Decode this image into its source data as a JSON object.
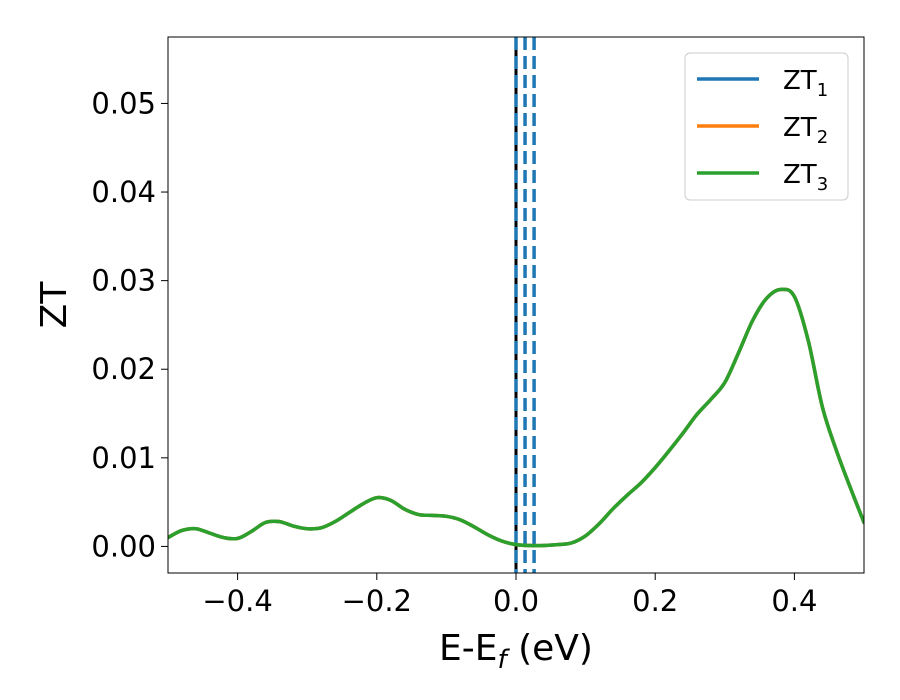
{
  "chart_data": {
    "type": "line",
    "xlabel": "E-E",
    "xlabel_sub": "f",
    "xlabel_unit": " (eV)",
    "ylabel": "ZT",
    "xlim": [
      -0.5,
      0.5
    ],
    "ylim": [
      -0.003,
      0.0575
    ],
    "xticks": [
      -0.4,
      -0.2,
      0.0,
      0.2,
      0.4
    ],
    "xtick_labels": [
      "−0.4",
      "−0.2",
      "0.0",
      "0.2",
      "0.4"
    ],
    "yticks": [
      0.0,
      0.01,
      0.02,
      0.03,
      0.04,
      0.05
    ],
    "ytick_labels": [
      "0.00",
      "0.01",
      "0.02",
      "0.03",
      "0.04",
      "0.05"
    ],
    "grid": false,
    "legend_position": "top-right",
    "series": [
      {
        "name": "ZT",
        "sub": "1",
        "color": "#1f77b4"
      },
      {
        "name": "ZT",
        "sub": "2",
        "color": "#ff7f0e"
      },
      {
        "name": "ZT",
        "sub": "3",
        "color": "#2ca02c"
      }
    ],
    "x": [
      -0.5,
      -0.48,
      -0.46,
      -0.44,
      -0.42,
      -0.4,
      -0.38,
      -0.36,
      -0.34,
      -0.32,
      -0.3,
      -0.28,
      -0.26,
      -0.24,
      -0.22,
      -0.2,
      -0.18,
      -0.16,
      -0.14,
      -0.12,
      -0.1,
      -0.08,
      -0.06,
      -0.04,
      -0.02,
      0.0,
      0.02,
      0.04,
      0.06,
      0.08,
      0.1,
      0.12,
      0.14,
      0.16,
      0.18,
      0.2,
      0.22,
      0.24,
      0.26,
      0.28,
      0.3,
      0.32,
      0.34,
      0.36,
      0.38,
      0.4,
      0.42,
      0.44,
      0.46,
      0.48,
      0.5
    ],
    "y": [
      0.001,
      0.0018,
      0.002,
      0.0015,
      0.001,
      0.0009,
      0.0017,
      0.0027,
      0.0028,
      0.0023,
      0.002,
      0.0021,
      0.0028,
      0.0038,
      0.0048,
      0.0055,
      0.0052,
      0.0042,
      0.0036,
      0.0035,
      0.0034,
      0.003,
      0.0022,
      0.0013,
      0.0006,
      0.0002,
      0.0001,
      0.0001,
      0.0002,
      0.0004,
      0.0012,
      0.0026,
      0.0043,
      0.0058,
      0.0072,
      0.0089,
      0.0108,
      0.0128,
      0.0149,
      0.0166,
      0.0185,
      0.0219,
      0.0255,
      0.028,
      0.029,
      0.0282,
      0.0232,
      0.0158,
      0.0109,
      0.0067,
      0.0027
    ],
    "vlines": [
      {
        "x": 0.0,
        "style": "solid",
        "color": "#000000"
      },
      {
        "x": 0.0,
        "style": "dashed",
        "color": "#1f77b4"
      },
      {
        "x": 0.013,
        "style": "dashed",
        "color": "#1f77b4"
      },
      {
        "x": 0.026,
        "style": "dashed",
        "color": "#1f77b4"
      }
    ]
  }
}
